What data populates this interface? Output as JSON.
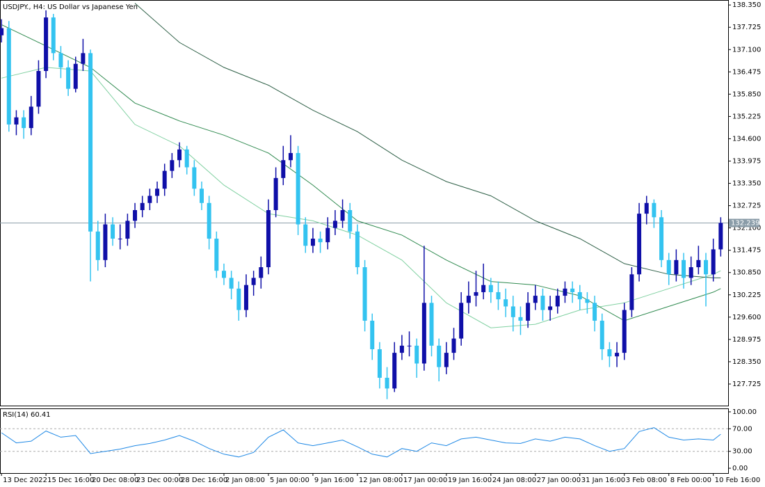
{
  "chart_data": {
    "type": "candlestick",
    "title": "USDJPY., H4:  US Dollar vs Japanese Yen",
    "bull_color": "#0f0fa8",
    "bear_color": "#33c3f0",
    "xlim": [
      -0.2,
      98
    ],
    "ylim": [
      127.12,
      138.47
    ],
    "xticks": [
      {
        "value": 0,
        "label": "13 Dec 2022"
      },
      {
        "value": 6,
        "label": "15 Dec 16:00"
      },
      {
        "value": 12,
        "label": "20 Dec 08:00"
      },
      {
        "value": 18,
        "label": "23 Dec 00:00"
      },
      {
        "value": 24,
        "label": "28 Dec 16:00"
      },
      {
        "value": 30,
        "label": "2 Jan 08:00"
      },
      {
        "value": 36,
        "label": "5 Jan 00:00"
      },
      {
        "value": 42,
        "label": "9 Jan 16:00"
      },
      {
        "value": 48,
        "label": "12 Jan 08:00"
      },
      {
        "value": 54,
        "label": "17 Jan 00:00"
      },
      {
        "value": 60,
        "label": "19 Jan 16:00"
      },
      {
        "value": 66,
        "label": "24 Jan 08:00"
      },
      {
        "value": 72,
        "label": "27 Jan 00:00"
      },
      {
        "value": 78,
        "label": "31 Jan 16:00"
      },
      {
        "value": 84,
        "label": "3 Feb 08:00"
      },
      {
        "value": 90,
        "label": "8 Feb 00:00"
      },
      {
        "value": 96,
        "label": "10 Feb 16:00"
      }
    ],
    "yticks": [
      {
        "value": 127.725,
        "label": "127.725"
      },
      {
        "value": 128.35,
        "label": "128.350"
      },
      {
        "value": 128.975,
        "label": "128.975"
      },
      {
        "value": 129.6,
        "label": "129.600"
      },
      {
        "value": 130.225,
        "label": "130.225"
      },
      {
        "value": 130.85,
        "label": "130.850"
      },
      {
        "value": 131.475,
        "label": "131.475"
      },
      {
        "value": 132.1,
        "label": "132.100"
      },
      {
        "value": 132.725,
        "label": "132.725"
      },
      {
        "value": 133.35,
        "label": "133.350"
      },
      {
        "value": 133.975,
        "label": "133.975"
      },
      {
        "value": 134.6,
        "label": "134.600"
      },
      {
        "value": 135.225,
        "label": "135.225"
      },
      {
        "value": 135.85,
        "label": "135.850"
      },
      {
        "value": 136.475,
        "label": "136.475"
      },
      {
        "value": 137.1,
        "label": "137.100"
      },
      {
        "value": 137.725,
        "label": "137.725"
      },
      {
        "value": 138.35,
        "label": "138.350"
      }
    ],
    "price_line": {
      "value": 132.239,
      "label": "132.239",
      "color": "#8a9ca8"
    },
    "ohlc": [
      [
        137.5,
        137.95,
        137.3,
        137.7
      ],
      [
        137.7,
        137.9,
        134.8,
        135.0
      ],
      [
        135.0,
        135.4,
        134.7,
        135.2
      ],
      [
        135.2,
        135.4,
        134.6,
        134.9
      ],
      [
        134.9,
        135.8,
        134.7,
        135.5
      ],
      [
        135.5,
        136.8,
        135.3,
        136.5
      ],
      [
        136.5,
        138.2,
        136.3,
        138.0
      ],
      [
        138.0,
        138.1,
        136.8,
        137.0
      ],
      [
        137.0,
        137.2,
        136.3,
        136.6
      ],
      [
        136.6,
        136.8,
        135.8,
        136.0
      ],
      [
        136.0,
        136.9,
        135.9,
        136.7
      ],
      [
        136.7,
        137.4,
        136.5,
        137.0
      ],
      [
        137.0,
        137.1,
        130.6,
        132.0
      ],
      [
        132.0,
        132.3,
        130.9,
        131.2
      ],
      [
        131.2,
        132.5,
        131.0,
        132.2
      ],
      [
        132.2,
        132.4,
        131.6,
        131.8
      ],
      [
        131.8,
        132.2,
        131.5,
        131.8
      ],
      [
        131.8,
        132.5,
        131.6,
        132.3
      ],
      [
        132.3,
        132.8,
        132.1,
        132.6
      ],
      [
        132.6,
        133.0,
        132.4,
        132.8
      ],
      [
        132.8,
        133.2,
        132.6,
        133.0
      ],
      [
        133.0,
        133.4,
        132.8,
        133.2
      ],
      [
        133.2,
        133.9,
        133.0,
        133.7
      ],
      [
        133.7,
        134.2,
        133.5,
        134.0
      ],
      [
        134.0,
        134.5,
        133.8,
        134.3
      ],
      [
        134.3,
        134.4,
        133.6,
        133.8
      ],
      [
        133.8,
        134.0,
        133.0,
        133.2
      ],
      [
        133.2,
        133.4,
        132.6,
        132.8
      ],
      [
        132.8,
        133.0,
        131.5,
        131.8
      ],
      [
        131.8,
        132.0,
        130.7,
        130.9
      ],
      [
        130.9,
        131.1,
        130.5,
        130.7
      ],
      [
        130.7,
        130.9,
        130.1,
        130.4
      ],
      [
        130.4,
        130.6,
        129.5,
        129.8
      ],
      [
        129.8,
        130.8,
        129.6,
        130.5
      ],
      [
        130.5,
        130.9,
        130.2,
        130.7
      ],
      [
        130.7,
        131.3,
        130.4,
        131.0
      ],
      [
        131.0,
        132.9,
        130.8,
        132.6
      ],
      [
        132.6,
        133.8,
        132.4,
        133.5
      ],
      [
        133.5,
        134.4,
        133.3,
        134.0
      ],
      [
        134.0,
        134.7,
        133.8,
        134.2
      ],
      [
        134.2,
        134.4,
        131.9,
        132.2
      ],
      [
        132.2,
        132.4,
        131.4,
        131.6
      ],
      [
        131.6,
        132.1,
        131.4,
        131.8
      ],
      [
        131.8,
        132.0,
        131.4,
        131.7
      ],
      [
        131.7,
        132.4,
        131.5,
        132.1
      ],
      [
        132.1,
        132.6,
        131.9,
        132.3
      ],
      [
        132.3,
        132.9,
        132.1,
        132.6
      ],
      [
        132.6,
        132.8,
        131.8,
        132.0
      ],
      [
        132.0,
        132.2,
        130.8,
        131.0
      ],
      [
        131.0,
        131.2,
        129.2,
        129.5
      ],
      [
        129.5,
        129.7,
        128.4,
        128.7
      ],
      [
        128.7,
        128.9,
        127.6,
        127.9
      ],
      [
        127.9,
        128.2,
        127.3,
        127.6
      ],
      [
        127.6,
        128.9,
        127.5,
        128.6
      ],
      [
        128.6,
        129.1,
        128.4,
        128.8
      ],
      [
        128.8,
        129.2,
        128.5,
        128.8
      ],
      [
        128.8,
        129.0,
        127.9,
        128.3
      ],
      [
        128.3,
        131.6,
        128.1,
        130.0
      ],
      [
        130.0,
        130.2,
        128.5,
        128.8
      ],
      [
        128.8,
        129.0,
        127.8,
        128.2
      ],
      [
        128.2,
        128.9,
        128.0,
        128.6
      ],
      [
        128.6,
        129.3,
        128.4,
        129.0
      ],
      [
        129.0,
        130.3,
        128.8,
        130.0
      ],
      [
        130.0,
        130.6,
        129.7,
        130.2
      ],
      [
        130.2,
        130.9,
        129.9,
        130.3
      ],
      [
        130.3,
        131.1,
        130.1,
        130.5
      ],
      [
        130.5,
        130.7,
        130.0,
        130.3
      ],
      [
        130.3,
        130.6,
        129.8,
        130.1
      ],
      [
        130.1,
        130.4,
        129.6,
        129.9
      ],
      [
        129.9,
        130.2,
        129.2,
        129.6
      ],
      [
        129.6,
        129.9,
        129.1,
        129.5
      ],
      [
        129.5,
        130.3,
        129.3,
        130.0
      ],
      [
        130.0,
        130.5,
        129.8,
        130.2
      ],
      [
        130.2,
        130.4,
        129.5,
        129.8
      ],
      [
        129.8,
        130.2,
        129.5,
        129.9
      ],
      [
        129.9,
        130.4,
        129.7,
        130.2
      ],
      [
        130.2,
        130.6,
        130.0,
        130.4
      ],
      [
        130.4,
        130.6,
        130.0,
        130.3
      ],
      [
        130.3,
        130.5,
        129.8,
        130.1
      ],
      [
        130.1,
        130.3,
        129.7,
        130.0
      ],
      [
        130.0,
        130.2,
        129.2,
        129.5
      ],
      [
        129.5,
        129.7,
        128.4,
        128.7
      ],
      [
        128.7,
        128.9,
        128.2,
        128.5
      ],
      [
        128.5,
        128.9,
        128.2,
        128.6
      ],
      [
        128.6,
        130.0,
        128.4,
        129.8
      ],
      [
        129.8,
        131.0,
        129.6,
        130.8
      ],
      [
        130.8,
        132.8,
        130.6,
        132.5
      ],
      [
        132.5,
        133.0,
        132.2,
        132.8
      ],
      [
        132.8,
        132.9,
        132.1,
        132.4
      ],
      [
        132.4,
        132.6,
        131.0,
        131.2
      ],
      [
        131.2,
        131.4,
        130.5,
        130.8
      ],
      [
        130.8,
        131.5,
        130.6,
        131.2
      ],
      [
        131.2,
        131.4,
        130.4,
        130.7
      ],
      [
        130.7,
        131.3,
        130.5,
        131.0
      ],
      [
        131.0,
        131.6,
        130.8,
        131.2
      ],
      [
        131.2,
        131.4,
        129.9,
        130.8
      ],
      [
        130.8,
        131.8,
        130.6,
        131.5
      ],
      [
        131.5,
        132.4,
        131.3,
        132.24
      ]
    ],
    "moving_averages": [
      {
        "color": "#7fd0a0",
        "x": [
          0,
          6,
          12,
          18,
          24,
          30,
          36,
          42,
          48,
          54,
          60,
          66,
          72,
          78,
          84,
          90,
          96,
          97
        ],
        "values": [
          136.3,
          136.6,
          136.5,
          135.0,
          134.4,
          133.3,
          132.5,
          132.3,
          131.9,
          131.2,
          130.0,
          129.3,
          129.4,
          129.8,
          130.0,
          130.4,
          130.8,
          130.9
        ]
      },
      {
        "color": "#2f8a4f",
        "x": [
          0,
          6,
          12,
          18,
          24,
          30,
          36,
          42,
          48,
          54,
          60,
          66,
          72,
          78,
          84,
          90,
          96,
          97
        ],
        "values": [
          137.8,
          137.2,
          136.6,
          135.6,
          135.1,
          134.7,
          134.2,
          133.3,
          132.3,
          131.9,
          131.2,
          130.6,
          130.5,
          130.2,
          129.5,
          129.9,
          130.3,
          130.4
        ]
      },
      {
        "color": "#2c5e45",
        "x": [
          0,
          6,
          12,
          18,
          24,
          30,
          36,
          42,
          48,
          54,
          60,
          66,
          72,
          78,
          84,
          90,
          96,
          97
        ],
        "values": [
          null,
          null,
          null,
          138.4,
          137.3,
          136.6,
          136.1,
          135.4,
          134.8,
          134.0,
          133.4,
          133.0,
          132.3,
          131.8,
          131.1,
          130.8,
          130.7,
          130.7
        ]
      }
    ],
    "rsi": {
      "label": "RSI(14) 60.41",
      "color": "#1e88e5",
      "ylim": [
        -8.6,
        104.9
      ],
      "yticks": [
        {
          "value": 100,
          "label": "100.00"
        },
        {
          "value": 70,
          "label": "70.00"
        },
        {
          "value": 30,
          "label": "30.00"
        },
        {
          "value": 0,
          "label": "0.00"
        }
      ],
      "levels": [
        70,
        30
      ],
      "x": [
        0,
        2,
        4,
        6,
        8,
        10,
        12,
        14,
        16,
        18,
        20,
        22,
        24,
        26,
        28,
        30,
        32,
        34,
        36,
        38,
        40,
        42,
        44,
        46,
        48,
        50,
        52,
        54,
        56,
        58,
        60,
        62,
        64,
        66,
        68,
        70,
        72,
        74,
        76,
        78,
        80,
        82,
        84,
        86,
        88,
        90,
        92,
        94,
        96,
        97
      ],
      "values": [
        63,
        45,
        48,
        66,
        55,
        58,
        26,
        30,
        34,
        40,
        44,
        50,
        58,
        48,
        35,
        25,
        20,
        28,
        55,
        68,
        45,
        40,
        45,
        50,
        38,
        25,
        20,
        35,
        30,
        45,
        40,
        52,
        55,
        50,
        45,
        44,
        52,
        48,
        55,
        52,
        40,
        30,
        35,
        65,
        72,
        55,
        50,
        52,
        50,
        60.41
      ]
    }
  }
}
